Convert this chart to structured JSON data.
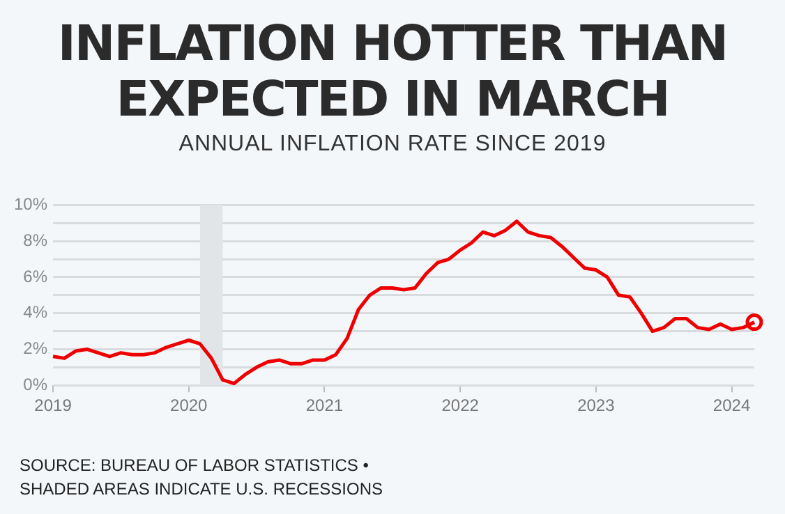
{
  "chart_data": {
    "type": "line",
    "title": "INFLATION HOTTER THAN EXPECTED IN MARCH",
    "subtitle": "ANNUAL INFLATION RATE SINCE 2019",
    "x": [
      "2019-01",
      "2019-02",
      "2019-03",
      "2019-04",
      "2019-05",
      "2019-06",
      "2019-07",
      "2019-08",
      "2019-09",
      "2019-10",
      "2019-11",
      "2019-12",
      "2020-01",
      "2020-02",
      "2020-03",
      "2020-04",
      "2020-05",
      "2020-06",
      "2020-07",
      "2020-08",
      "2020-09",
      "2020-10",
      "2020-11",
      "2020-12",
      "2021-01",
      "2021-02",
      "2021-03",
      "2021-04",
      "2021-05",
      "2021-06",
      "2021-07",
      "2021-08",
      "2021-09",
      "2021-10",
      "2021-11",
      "2021-12",
      "2022-01",
      "2022-02",
      "2022-03",
      "2022-04",
      "2022-05",
      "2022-06",
      "2022-07",
      "2022-08",
      "2022-09",
      "2022-10",
      "2022-11",
      "2022-12",
      "2023-01",
      "2023-02",
      "2023-03",
      "2023-04",
      "2023-05",
      "2023-06",
      "2023-07",
      "2023-08",
      "2023-09",
      "2023-10",
      "2023-11",
      "2023-12",
      "2024-01",
      "2024-02",
      "2024-03"
    ],
    "series": [
      {
        "color": "#ee0000",
        "values": [
          1.6,
          1.5,
          1.9,
          2.0,
          1.8,
          1.6,
          1.8,
          1.7,
          1.7,
          1.8,
          2.1,
          2.3,
          2.5,
          2.3,
          1.5,
          0.3,
          0.1,
          0.6,
          1.0,
          1.3,
          1.4,
          1.2,
          1.2,
          1.4,
          1.4,
          1.7,
          2.6,
          4.2,
          5.0,
          5.4,
          5.4,
          5.3,
          5.4,
          6.2,
          6.8,
          7.0,
          7.5,
          7.9,
          8.5,
          8.3,
          8.6,
          9.1,
          8.5,
          8.3,
          8.2,
          7.7,
          7.1,
          6.5,
          6.4,
          6.0,
          5.0,
          4.9,
          4.0,
          3.0,
          3.2,
          3.7,
          3.7,
          3.2,
          3.1,
          3.4,
          3.1,
          3.2,
          3.5
        ]
      },
      {
        "type": "scatter",
        "color": "#ee0000",
        "marker": "circle",
        "x": [
          "2024-03"
        ],
        "values": [
          3.5
        ]
      }
    ],
    "xlim": [
      "2019-01",
      "2024-03"
    ],
    "xticks": [
      "2019",
      "2020",
      "2021",
      "2022",
      "2023",
      "2024"
    ],
    "ylim": [
      0,
      10
    ],
    "yticks": [
      {
        "value": 0,
        "label": "0%"
      },
      {
        "value": 1,
        "label": null
      },
      {
        "value": 2,
        "label": "2%"
      },
      {
        "value": 3,
        "label": null
      },
      {
        "value": 4,
        "label": "4%"
      },
      {
        "value": 5,
        "label": null
      },
      {
        "value": 6,
        "label": "6%"
      },
      {
        "value": 7,
        "label": null
      },
      {
        "value": 8,
        "label": "8%"
      },
      {
        "value": 9,
        "label": null
      },
      {
        "value": 10,
        "label": "10%"
      }
    ],
    "grid": "y",
    "marker": "none",
    "legend": false,
    "bands": [
      {
        "axis": "x",
        "from": "2020-02",
        "to": "2020-04",
        "color": "#e2e5e8"
      }
    ],
    "annotations": [
      "SOURCE: BUREAU OF LABOR STATISTICS • SHADED AREAS INDICATE U.S. RECESSIONS"
    ]
  }
}
